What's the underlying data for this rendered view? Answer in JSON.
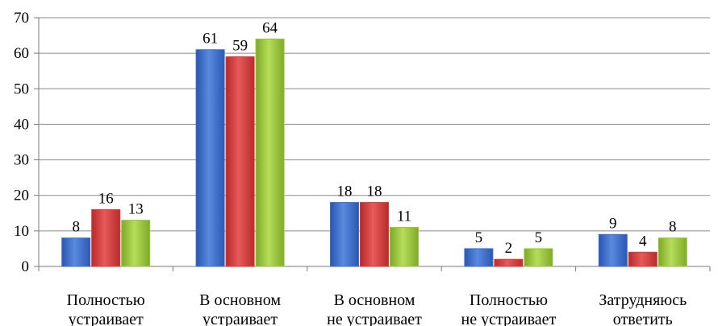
{
  "chart_data": {
    "type": "bar",
    "title": "",
    "xlabel": "",
    "ylabel": "",
    "ylim": [
      0,
      70
    ],
    "yticks": [
      0,
      10,
      20,
      30,
      40,
      50,
      60,
      70
    ],
    "grid": true,
    "legend": "none",
    "categories": [
      [
        "Полностью",
        "устраивает"
      ],
      [
        "В основном",
        "устраивает"
      ],
      [
        "В основном",
        "не устраивает"
      ],
      [
        "Полностью",
        "не устраивает"
      ],
      [
        "Затрудняюсь",
        "ответить"
      ]
    ],
    "series": [
      {
        "values": [
          8,
          61,
          18,
          5,
          9
        ],
        "color": "#3f6fc7"
      },
      {
        "values": [
          16,
          59,
          18,
          2,
          4
        ],
        "color": "#d23c3c"
      },
      {
        "values": [
          13,
          64,
          11,
          5,
          8
        ],
        "color": "#9ac43c"
      }
    ]
  }
}
